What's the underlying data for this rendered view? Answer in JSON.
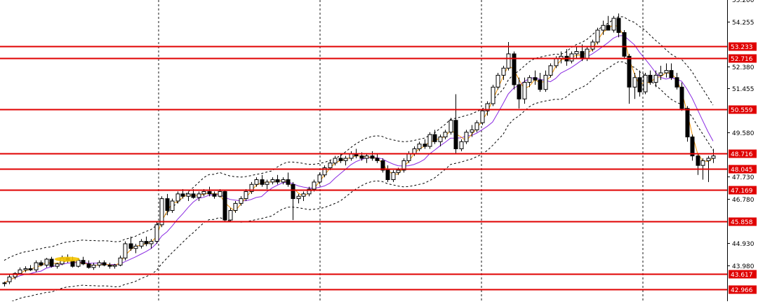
{
  "chart_data": {
    "type": "candlestick",
    "y_range": [
      42.6,
      55.3
    ],
    "axis": {
      "tick_labels": [
        "54.255",
        "53.233",
        "52.716",
        "52.380",
        "51.455",
        "50.559",
        "49.580",
        "48.716",
        "48.045",
        "47.730",
        "47.169",
        "46.780",
        "45.858",
        "44.930",
        "43.980",
        "43.617",
        "42.966"
      ],
      "plain_ticks": [
        54.255,
        52.38,
        51.455,
        49.58,
        47.73,
        46.78,
        44.93,
        43.98
      ],
      "top_partial_label": "55.200"
    },
    "levels": [
      {
        "value": 53.233,
        "label": "53.233"
      },
      {
        "value": 52.716,
        "label": "52.716"
      },
      {
        "value": 50.559,
        "label": "50.559"
      },
      {
        "value": 48.716,
        "label": "48.716"
      },
      {
        "value": 48.045,
        "label": "48.045"
      },
      {
        "value": 47.169,
        "label": "47.169"
      },
      {
        "value": 45.858,
        "label": "45.858"
      },
      {
        "value": 43.617,
        "label": "43.617"
      },
      {
        "value": 42.966,
        "label": "42.966"
      }
    ],
    "candles": [
      [
        43.25,
        43.3,
        43.1,
        43.25
      ],
      [
        43.3,
        43.6,
        43.2,
        43.5
      ],
      [
        43.5,
        43.7,
        43.4,
        43.65
      ],
      [
        43.65,
        43.9,
        43.6,
        43.8
      ],
      [
        43.8,
        43.95,
        43.7,
        43.85
      ],
      [
        43.85,
        44.0,
        43.75,
        43.8
      ],
      [
        43.8,
        44.2,
        43.7,
        44.1
      ],
      [
        44.1,
        44.2,
        43.95,
        44.0
      ],
      [
        44.0,
        44.3,
        43.9,
        44.25
      ],
      [
        44.25,
        44.35,
        43.9,
        43.95
      ],
      [
        43.95,
        44.1,
        43.85,
        44.05
      ],
      [
        44.05,
        44.4,
        44.0,
        44.3
      ],
      [
        44.3,
        44.45,
        44.1,
        44.2
      ],
      [
        44.2,
        44.35,
        43.9,
        43.95
      ],
      [
        43.95,
        44.3,
        43.9,
        44.2
      ],
      [
        44.2,
        44.35,
        44.0,
        44.05
      ],
      [
        44.05,
        44.2,
        43.85,
        43.9
      ],
      [
        43.9,
        44.1,
        43.8,
        44.0
      ],
      [
        44.0,
        44.2,
        43.9,
        44.1
      ],
      [
        44.1,
        44.2,
        43.95,
        44.0
      ],
      [
        44.0,
        44.1,
        43.85,
        43.95
      ],
      [
        43.95,
        44.05,
        43.85,
        44.0
      ],
      [
        44.0,
        44.4,
        43.95,
        44.3
      ],
      [
        44.3,
        45.0,
        44.2,
        44.9
      ],
      [
        44.9,
        45.2,
        44.6,
        44.7
      ],
      [
        44.7,
        44.9,
        44.5,
        44.8
      ],
      [
        44.8,
        45.1,
        44.7,
        45.0
      ],
      [
        45.0,
        45.2,
        44.8,
        44.9
      ],
      [
        44.9,
        45.1,
        44.7,
        45.0
      ],
      [
        45.0,
        45.8,
        44.9,
        45.7
      ],
      [
        45.7,
        46.9,
        45.6,
        46.8
      ],
      [
        46.8,
        47.0,
        46.1,
        46.3
      ],
      [
        46.3,
        46.8,
        46.2,
        46.7
      ],
      [
        46.7,
        47.1,
        46.6,
        47.0
      ],
      [
        47.0,
        47.2,
        46.8,
        46.9
      ],
      [
        46.9,
        47.1,
        46.7,
        47.0
      ],
      [
        47.0,
        47.2,
        46.8,
        46.85
      ],
      [
        46.85,
        47.1,
        46.7,
        47.0
      ],
      [
        47.0,
        47.2,
        46.9,
        47.1
      ],
      [
        47.1,
        47.3,
        46.9,
        47.0
      ],
      [
        47.0,
        47.1,
        46.8,
        46.9
      ],
      [
        46.9,
        47.2,
        46.85,
        47.1
      ],
      [
        47.1,
        47.15,
        45.8,
        45.9
      ],
      [
        45.9,
        46.4,
        45.85,
        46.3
      ],
      [
        46.3,
        46.7,
        46.2,
        46.6
      ],
      [
        46.6,
        46.9,
        46.5,
        46.8
      ],
      [
        46.8,
        47.2,
        46.7,
        47.1
      ],
      [
        47.1,
        47.5,
        47.0,
        47.4
      ],
      [
        47.4,
        47.7,
        47.3,
        47.6
      ],
      [
        47.6,
        47.8,
        47.3,
        47.4
      ],
      [
        47.4,
        47.6,
        47.2,
        47.5
      ],
      [
        47.5,
        47.7,
        47.4,
        47.6
      ],
      [
        47.6,
        47.8,
        47.4,
        47.5
      ],
      [
        47.5,
        47.7,
        47.4,
        47.6
      ],
      [
        47.6,
        47.9,
        47.3,
        47.4
      ],
      [
        47.4,
        47.5,
        45.9,
        46.8
      ],
      [
        46.8,
        47.0,
        46.6,
        46.9
      ],
      [
        46.9,
        47.1,
        46.7,
        47.0
      ],
      [
        47.0,
        47.3,
        46.9,
        47.2
      ],
      [
        47.2,
        47.6,
        47.1,
        47.5
      ],
      [
        47.5,
        47.9,
        47.4,
        47.8
      ],
      [
        47.8,
        48.2,
        47.7,
        48.1
      ],
      [
        48.1,
        48.4,
        48.0,
        48.3
      ],
      [
        48.3,
        48.6,
        48.2,
        48.5
      ],
      [
        48.5,
        48.7,
        48.3,
        48.4
      ],
      [
        48.4,
        48.6,
        48.2,
        48.5
      ],
      [
        48.5,
        48.8,
        48.4,
        48.7
      ],
      [
        48.7,
        48.9,
        48.5,
        48.6
      ],
      [
        48.6,
        48.75,
        48.4,
        48.5
      ],
      [
        48.5,
        48.7,
        48.3,
        48.6
      ],
      [
        48.6,
        48.8,
        48.4,
        48.5
      ],
      [
        48.5,
        48.7,
        48.3,
        48.4
      ],
      [
        48.4,
        48.5,
        47.9,
        48.0
      ],
      [
        48.0,
        48.2,
        47.5,
        47.6
      ],
      [
        47.6,
        48.0,
        47.5,
        47.9
      ],
      [
        47.9,
        48.1,
        47.8,
        48.0
      ],
      [
        48.0,
        48.5,
        47.9,
        48.4
      ],
      [
        48.4,
        48.8,
        48.3,
        48.7
      ],
      [
        48.7,
        49.0,
        48.6,
        48.9
      ],
      [
        48.9,
        49.2,
        48.8,
        49.1
      ],
      [
        49.1,
        49.3,
        48.9,
        49.0
      ],
      [
        49.0,
        49.6,
        48.9,
        49.5
      ],
      [
        49.5,
        49.7,
        49.1,
        49.2
      ],
      [
        49.2,
        49.5,
        49.0,
        49.4
      ],
      [
        49.4,
        49.7,
        49.3,
        49.6
      ],
      [
        49.6,
        50.2,
        49.5,
        50.1
      ],
      [
        50.1,
        51.2,
        48.7,
        48.9
      ],
      [
        48.9,
        49.3,
        48.8,
        49.2
      ],
      [
        49.2,
        49.7,
        49.1,
        49.6
      ],
      [
        49.6,
        49.9,
        49.4,
        49.7
      ],
      [
        49.7,
        50.1,
        49.6,
        50.0
      ],
      [
        50.0,
        50.6,
        49.9,
        50.5
      ],
      [
        50.5,
        50.9,
        50.3,
        50.8
      ],
      [
        50.8,
        51.6,
        50.7,
        51.5
      ],
      [
        51.5,
        52.1,
        51.4,
        52.0
      ],
      [
        52.0,
        52.4,
        51.8,
        52.3
      ],
      [
        52.3,
        53.4,
        52.2,
        52.9
      ],
      [
        52.9,
        53.0,
        51.4,
        51.6
      ],
      [
        51.6,
        51.9,
        50.6,
        51.0
      ],
      [
        51.0,
        51.9,
        50.8,
        51.7
      ],
      [
        51.7,
        52.0,
        51.5,
        51.9
      ],
      [
        51.9,
        52.2,
        51.6,
        51.8
      ],
      [
        51.8,
        52.1,
        51.3,
        51.4
      ],
      [
        51.4,
        52.2,
        51.3,
        52.0
      ],
      [
        52.0,
        52.5,
        51.9,
        52.4
      ],
      [
        52.4,
        52.8,
        52.3,
        52.7
      ],
      [
        52.7,
        53.0,
        52.5,
        52.8
      ],
      [
        52.8,
        53.1,
        52.4,
        52.6
      ],
      [
        52.6,
        53.0,
        52.5,
        52.9
      ],
      [
        52.9,
        53.2,
        52.7,
        53.0
      ],
      [
        53.0,
        53.3,
        52.6,
        52.7
      ],
      [
        52.7,
        53.2,
        52.6,
        53.1
      ],
      [
        53.1,
        53.5,
        53.0,
        53.4
      ],
      [
        53.4,
        54.0,
        53.3,
        53.9
      ],
      [
        53.9,
        54.3,
        53.7,
        54.1
      ],
      [
        54.1,
        54.5,
        53.9,
        53.9
      ],
      [
        53.9,
        54.5,
        53.8,
        54.4
      ],
      [
        54.4,
        54.6,
        53.6,
        53.8
      ],
      [
        53.8,
        53.9,
        52.7,
        52.8
      ],
      [
        52.8,
        52.9,
        50.8,
        51.5
      ],
      [
        51.5,
        52.1,
        51.0,
        51.9
      ],
      [
        51.9,
        52.2,
        51.1,
        51.3
      ],
      [
        51.3,
        52.1,
        51.2,
        52.0
      ],
      [
        52.0,
        52.2,
        51.6,
        51.7
      ],
      [
        51.7,
        52.2,
        51.5,
        52.0
      ],
      [
        52.0,
        52.4,
        51.8,
        52.1
      ],
      [
        52.1,
        52.5,
        51.9,
        52.2
      ],
      [
        52.2,
        52.5,
        51.8,
        51.9
      ],
      [
        51.9,
        52.1,
        51.4,
        51.5
      ],
      [
        51.5,
        51.7,
        50.5,
        50.6
      ],
      [
        50.6,
        50.7,
        49.2,
        49.4
      ],
      [
        49.4,
        49.5,
        48.4,
        48.6
      ],
      [
        48.6,
        48.7,
        47.8,
        48.2
      ],
      [
        48.2,
        48.5,
        47.6,
        48.4
      ],
      [
        48.4,
        48.6,
        47.5,
        48.5
      ],
      [
        48.5,
        48.9,
        48.3,
        48.6
      ]
    ]
  }
}
